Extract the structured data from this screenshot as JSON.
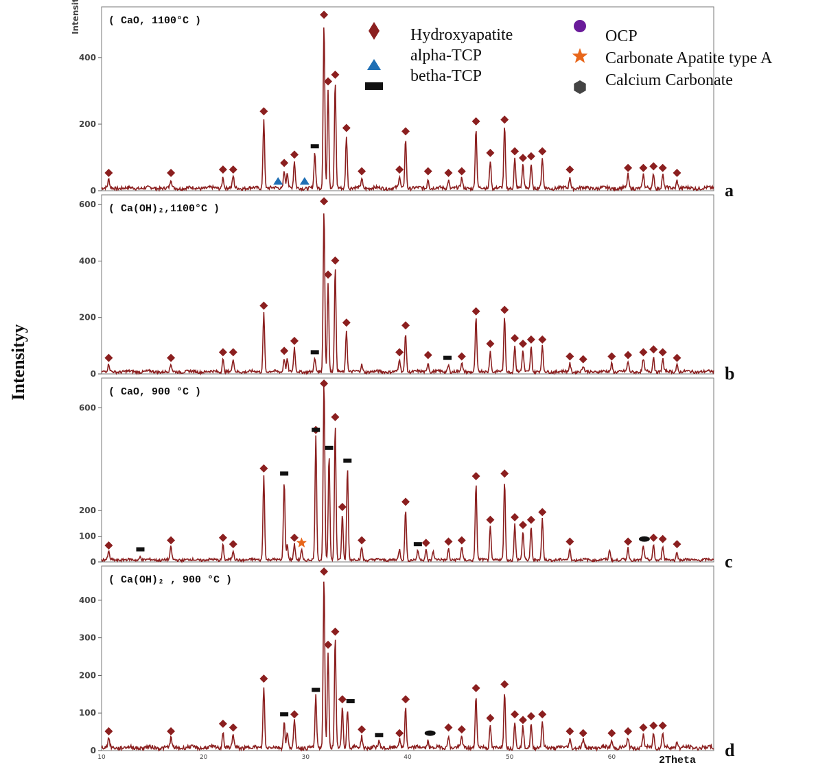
{
  "chart_data": {
    "type": "line",
    "ylabel": "Intensityy",
    "xlabel": "2Theta",
    "xlim": [
      10,
      70
    ],
    "x_ticks": [
      "10",
      "20",
      "30",
      "40",
      "50",
      "60"
    ],
    "colors": {
      "trace": "#8b1f1f",
      "hydroxyapatite": "#8b1f1f",
      "alpha_tcp": "#1f6fb5",
      "betha_tcp": "#111111",
      "ocp": "#6a1b9a",
      "carbonate_apatite": "#e8661a",
      "calcium_carbonate": "#444444"
    },
    "legend": {
      "placement": "top-right",
      "entries": [
        {
          "label": "Hydroxyapatite",
          "marker": "diamond"
        },
        {
          "label": "alpha-TCP",
          "marker": "triangle"
        },
        {
          "label": "betha-TCP",
          "marker": "rectangle"
        },
        {
          "label": "OCP",
          "marker": "circle"
        },
        {
          "label": "Carbonate Apatite type A",
          "marker": "star"
        },
        {
          "label": "Calcium Carbonate",
          "marker": "hexagon"
        }
      ]
    },
    "panels": [
      {
        "id": "a",
        "letter": "a",
        "title": "( CaO,  1100°C )",
        "ytick_title": "Intensitas",
        "ylim": [
          0,
          540
        ],
        "yticks": [
          0,
          200,
          400
        ],
        "peaks": [
          [
            10.7,
            25
          ],
          [
            16.8,
            25
          ],
          [
            21.9,
            35
          ],
          [
            22.9,
            35
          ],
          [
            25.9,
            210
          ],
          [
            27.9,
            55
          ],
          [
            28.2,
            50
          ],
          [
            28.9,
            80
          ],
          [
            30.9,
            105
          ],
          [
            31.8,
            500
          ],
          [
            32.2,
            300
          ],
          [
            32.9,
            320
          ],
          [
            34.0,
            160
          ],
          [
            35.5,
            30
          ],
          [
            39.2,
            35
          ],
          [
            39.8,
            150
          ],
          [
            42.0,
            30
          ],
          [
            44.0,
            25
          ],
          [
            45.3,
            30
          ],
          [
            46.7,
            180
          ],
          [
            48.1,
            85
          ],
          [
            49.5,
            185
          ],
          [
            50.5,
            90
          ],
          [
            51.3,
            70
          ],
          [
            52.1,
            75
          ],
          [
            53.2,
            90
          ],
          [
            55.9,
            35
          ],
          [
            61.6,
            40
          ],
          [
            63.1,
            40
          ],
          [
            64.1,
            45
          ],
          [
            65.0,
            40
          ],
          [
            66.4,
            25
          ]
        ],
        "markers": [
          {
            "type": "diamond",
            "x": [
              10.7,
              16.8,
              21.9,
              22.9,
              25.9,
              27.9,
              28.9,
              31.8,
              32.2,
              32.9,
              34.0,
              35.5,
              39.2,
              39.8,
              42.0,
              44.0,
              45.3,
              46.7,
              48.1,
              49.5,
              50.5,
              51.3,
              52.1,
              53.2,
              55.9,
              61.6,
              63.1,
              64.1,
              65.0,
              66.4
            ]
          },
          {
            "type": "triangle",
            "x": [
              27.3,
              29.9
            ]
          },
          {
            "type": "rectangle",
            "x": [
              30.9
            ]
          }
        ]
      },
      {
        "id": "b",
        "letter": "b",
        "title": "( Ca(OH)₂,1100°C )",
        "ylim": [
          0,
          620
        ],
        "yticks": [
          0,
          200,
          400,
          600
        ],
        "peaks": [
          [
            10.7,
            25
          ],
          [
            16.8,
            25
          ],
          [
            21.9,
            45
          ],
          [
            22.9,
            45
          ],
          [
            25.9,
            210
          ],
          [
            27.9,
            50
          ],
          [
            28.2,
            45
          ],
          [
            28.9,
            85
          ],
          [
            30.9,
            45
          ],
          [
            31.8,
            580
          ],
          [
            32.2,
            320
          ],
          [
            32.9,
            370
          ],
          [
            34.0,
            150
          ],
          [
            35.5,
            25
          ],
          [
            39.2,
            45
          ],
          [
            39.8,
            140
          ],
          [
            42.0,
            35
          ],
          [
            44.0,
            25
          ],
          [
            45.3,
            30
          ],
          [
            46.7,
            190
          ],
          [
            48.1,
            75
          ],
          [
            49.5,
            195
          ],
          [
            50.5,
            95
          ],
          [
            51.3,
            75
          ],
          [
            52.1,
            90
          ],
          [
            53.2,
            90
          ],
          [
            55.9,
            30
          ],
          [
            57.2,
            20
          ],
          [
            60.0,
            30
          ],
          [
            61.6,
            35
          ],
          [
            63.1,
            45
          ],
          [
            64.1,
            55
          ],
          [
            65.0,
            45
          ],
          [
            66.4,
            25
          ]
        ],
        "markers": [
          {
            "type": "diamond",
            "x": [
              10.7,
              16.8,
              21.9,
              22.9,
              25.9,
              27.9,
              28.9,
              31.8,
              32.2,
              32.9,
              34.0,
              39.2,
              39.8,
              42.0,
              45.3,
              46.7,
              48.1,
              49.5,
              50.5,
              51.3,
              52.1,
              53.2,
              55.9,
              57.2,
              60.0,
              61.6,
              63.1,
              64.1,
              65.0,
              66.4
            ]
          },
          {
            "type": "rectangle",
            "x": [
              30.9,
              43.9
            ]
          }
        ]
      },
      {
        "id": "c",
        "letter": "c",
        "title": "( CaO, 900 °C )",
        "ylim": [
          0,
          700
        ],
        "yticks": [
          0,
          100,
          200,
          600
        ],
        "peaks": [
          [
            10.7,
            30
          ],
          [
            13.8,
            15
          ],
          [
            16.8,
            50
          ],
          [
            21.9,
            60
          ],
          [
            22.9,
            35
          ],
          [
            25.9,
            330
          ],
          [
            27.9,
            310
          ],
          [
            28.2,
            60
          ],
          [
            28.9,
            60
          ],
          [
            29.6,
            40
          ],
          [
            31.0,
            480
          ],
          [
            31.8,
            700
          ],
          [
            32.3,
            410
          ],
          [
            32.9,
            530
          ],
          [
            33.6,
            180
          ],
          [
            34.1,
            360
          ],
          [
            35.5,
            50
          ],
          [
            39.2,
            40
          ],
          [
            39.8,
            200
          ],
          [
            41.0,
            35
          ],
          [
            41.8,
            40
          ],
          [
            42.5,
            35
          ],
          [
            44.0,
            45
          ],
          [
            45.3,
            50
          ],
          [
            46.7,
            300
          ],
          [
            48.1,
            130
          ],
          [
            49.5,
            310
          ],
          [
            50.5,
            140
          ],
          [
            51.3,
            110
          ],
          [
            52.1,
            130
          ],
          [
            53.2,
            160
          ],
          [
            55.9,
            45
          ],
          [
            59.8,
            40
          ],
          [
            61.6,
            45
          ],
          [
            63.1,
            55
          ],
          [
            64.1,
            60
          ],
          [
            65.0,
            55
          ],
          [
            66.4,
            35
          ]
        ],
        "markers": [
          {
            "type": "diamond",
            "x": [
              10.7,
              16.8,
              21.9,
              22.9,
              25.9,
              28.9,
              31.0,
              31.8,
              32.9,
              33.6,
              35.5,
              39.8,
              41.8,
              44.0,
              45.3,
              46.7,
              48.1,
              49.5,
              50.5,
              51.3,
              52.1,
              53.2,
              55.9,
              61.6,
              64.1,
              65.0,
              66.4
            ]
          },
          {
            "type": "rectangle",
            "x": [
              13.8,
              27.9,
              31.0,
              32.3,
              34.1,
              41.0
            ]
          },
          {
            "type": "star",
            "x": [
              29.6
            ]
          },
          {
            "type": "hexagon",
            "x": [
              63.2
            ]
          }
        ]
      },
      {
        "id": "d",
        "letter": "d",
        "title": "( Ca(OH)₂ , 900 °C )",
        "ylim": [
          0,
          480
        ],
        "yticks": [
          0,
          100,
          200,
          300,
          400
        ],
        "peaks": [
          [
            10.7,
            25
          ],
          [
            16.8,
            25
          ],
          [
            21.9,
            45
          ],
          [
            22.9,
            35
          ],
          [
            25.9,
            165
          ],
          [
            27.9,
            70
          ],
          [
            28.2,
            40
          ],
          [
            28.9,
            70
          ],
          [
            31.0,
            135
          ],
          [
            31.8,
            460
          ],
          [
            32.2,
            255
          ],
          [
            32.9,
            290
          ],
          [
            33.6,
            110
          ],
          [
            34.1,
            105
          ],
          [
            35.5,
            30
          ],
          [
            37.2,
            15
          ],
          [
            39.2,
            20
          ],
          [
            39.8,
            110
          ],
          [
            42.0,
            20
          ],
          [
            44.0,
            35
          ],
          [
            45.3,
            30
          ],
          [
            46.7,
            140
          ],
          [
            48.1,
            60
          ],
          [
            49.5,
            150
          ],
          [
            50.5,
            70
          ],
          [
            51.3,
            55
          ],
          [
            52.1,
            65
          ],
          [
            53.2,
            70
          ],
          [
            55.9,
            25
          ],
          [
            57.2,
            20
          ],
          [
            60.0,
            20
          ],
          [
            61.6,
            25
          ],
          [
            63.1,
            35
          ],
          [
            64.1,
            40
          ],
          [
            65.0,
            40
          ],
          [
            66.4,
            20
          ]
        ],
        "markers": [
          {
            "type": "diamond",
            "x": [
              10.7,
              16.8,
              21.9,
              22.9,
              25.9,
              28.9,
              31.8,
              32.2,
              32.9,
              33.6,
              35.5,
              39.2,
              39.8,
              44.0,
              45.3,
              46.7,
              48.1,
              49.5,
              50.5,
              51.3,
              52.1,
              53.2,
              55.9,
              57.2,
              60.0,
              61.6,
              63.1,
              64.1,
              65.0
            ]
          },
          {
            "type": "rectangle",
            "x": [
              27.9,
              31.0,
              34.4,
              37.2
            ]
          },
          {
            "type": "hexagon",
            "x": [
              42.2
            ]
          }
        ]
      }
    ]
  }
}
